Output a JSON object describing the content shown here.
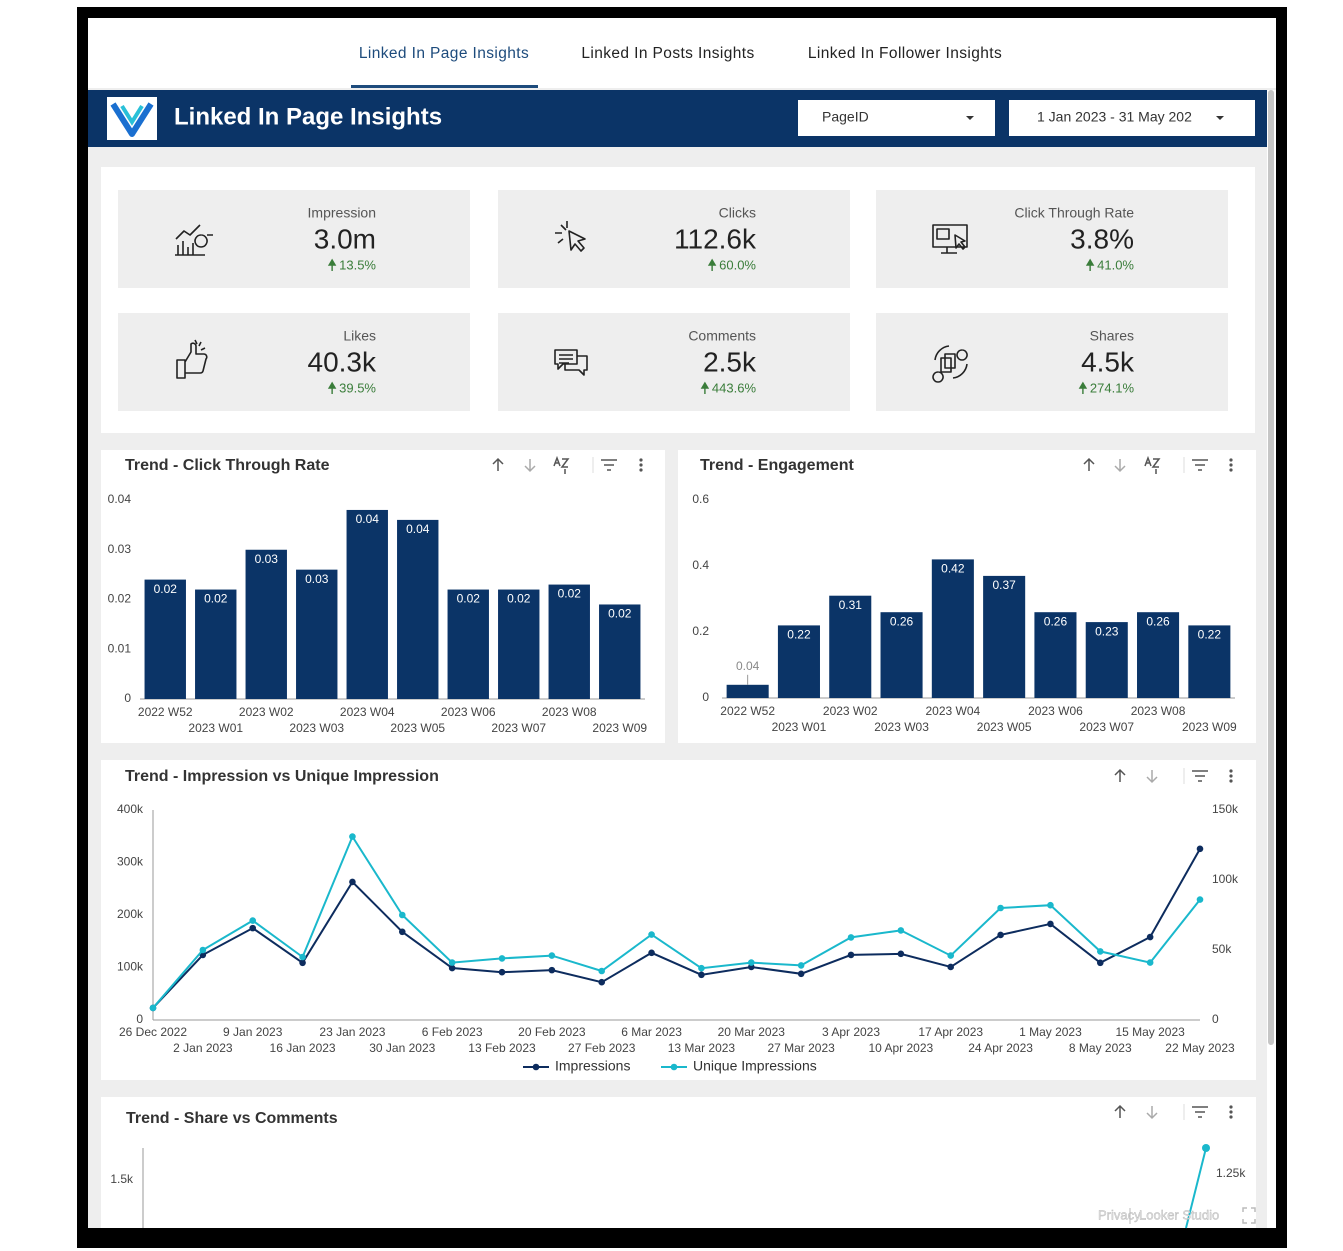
{
  "tabs": [
    "Linked In Page Insights",
    "Linked In Posts Insights",
    "Linked In Follower Insights"
  ],
  "header": {
    "title": "Linked In Page Insights",
    "page_filter": "PageID",
    "date_range": "1 Jan 2023 - 31 May 202"
  },
  "kpis": [
    {
      "label": "Impression",
      "value": "3.0m",
      "change": "13.5%"
    },
    {
      "label": "Clicks",
      "value": "112.6k",
      "change": "60.0%"
    },
    {
      "label": "Click Through Rate",
      "value": "3.8%",
      "change": "41.0%"
    },
    {
      "label": "Likes",
      "value": "40.3k",
      "change": "39.5%"
    },
    {
      "label": "Comments",
      "value": "2.5k",
      "change": "443.6%"
    },
    {
      "label": "Shares",
      "value": "4.5k",
      "change": "274.1%"
    }
  ],
  "chart_data": [
    {
      "type": "bar",
      "title": "Trend - Click Through Rate",
      "categories": [
        "2022 W52",
        "2023 W01",
        "2023 W02",
        "2023 W03",
        "2023 W04",
        "2023 W05",
        "2023 W06",
        "2023 W07",
        "2023 W08",
        "2023 W09"
      ],
      "values": [
        0.024,
        0.022,
        0.03,
        0.026,
        0.038,
        0.036,
        0.022,
        0.022,
        0.023,
        0.019
      ],
      "value_labels": [
        "0.02",
        "0.02",
        "0.03",
        "0.03",
        "0.04",
        "0.04",
        "0.02",
        "0.02",
        "0.02",
        "0.02"
      ],
      "color": "#0b3467",
      "ylim": [
        0,
        0.04
      ],
      "yticks": [
        0,
        0.01,
        0.02,
        0.03,
        0.04
      ]
    },
    {
      "type": "bar",
      "title": "Trend - Engagement",
      "categories": [
        "2022 W52",
        "2023 W01",
        "2023 W02",
        "2023 W03",
        "2023 W04",
        "2023 W05",
        "2023 W06",
        "2023 W07",
        "2023 W08",
        "2023 W09"
      ],
      "values": [
        0.04,
        0.22,
        0.31,
        0.26,
        0.42,
        0.37,
        0.26,
        0.23,
        0.26,
        0.22
      ],
      "color": "#0b3467",
      "ylim": [
        0,
        0.6
      ],
      "yticks": [
        0,
        0.2,
        0.4,
        0.6
      ]
    },
    {
      "type": "line",
      "title": "Trend - Impression vs Unique Impression",
      "x": [
        "26 Dec 2022",
        "2 Jan 2023",
        "9 Jan 2023",
        "16 Jan 2023",
        "23 Jan 2023",
        "30 Jan 2023",
        "6 Feb 2023",
        "13 Feb 2023",
        "20 Feb 2023",
        "27 Feb 2023",
        "6 Mar 2023",
        "13 Mar 2023",
        "20 Mar 2023",
        "27 Mar 2023",
        "3 Apr 2023",
        "10 Apr 2023",
        "17 Apr 2023",
        "24 Apr 2023",
        "1 May 2023",
        "8 May 2023",
        "15 May 2023",
        "22 May 2023"
      ],
      "series": [
        {
          "name": "Impressions",
          "color": "#0d2c5e",
          "values": [
            23000,
            124000,
            175000,
            109000,
            263000,
            168000,
            99000,
            91000,
            95000,
            72000,
            128000,
            86000,
            101000,
            88000,
            124000,
            126000,
            101000,
            162000,
            183000,
            109000,
            158000,
            326000
          ]
        },
        {
          "name": "Unique Impressions",
          "color": "#1ab8cc",
          "axis": "y2",
          "values": [
            8600,
            50000,
            71000,
            45000,
            131000,
            75000,
            41000,
            44000,
            46000,
            35000,
            61000,
            37000,
            41000,
            39000,
            59000,
            64000,
            46000,
            80000,
            82000,
            49000,
            41000,
            86000
          ]
        }
      ],
      "ylim": [
        0,
        400000
      ],
      "yticks": [
        0,
        {
          "value": 100000,
          "label": "100k"
        },
        {
          "value": 200000,
          "label": "200k"
        },
        {
          "value": 300000,
          "label": "300k"
        },
        {
          "value": 400000,
          "label": "400k"
        }
      ],
      "y2lim": [
        0,
        150000
      ],
      "y2ticks": [
        0,
        {
          "value": 50000,
          "label": "50k"
        },
        {
          "value": 100000,
          "label": "100k"
        },
        {
          "value": 150000,
          "label": "150k"
        }
      ]
    }
  ],
  "share_comments_panel": {
    "title": "Trend - Share vs Comments",
    "left_axis_label": "1.5k",
    "right_axis_label": "1.25k"
  },
  "footer": {
    "privacy": "Privacy",
    "brand": "Looker Studio"
  }
}
